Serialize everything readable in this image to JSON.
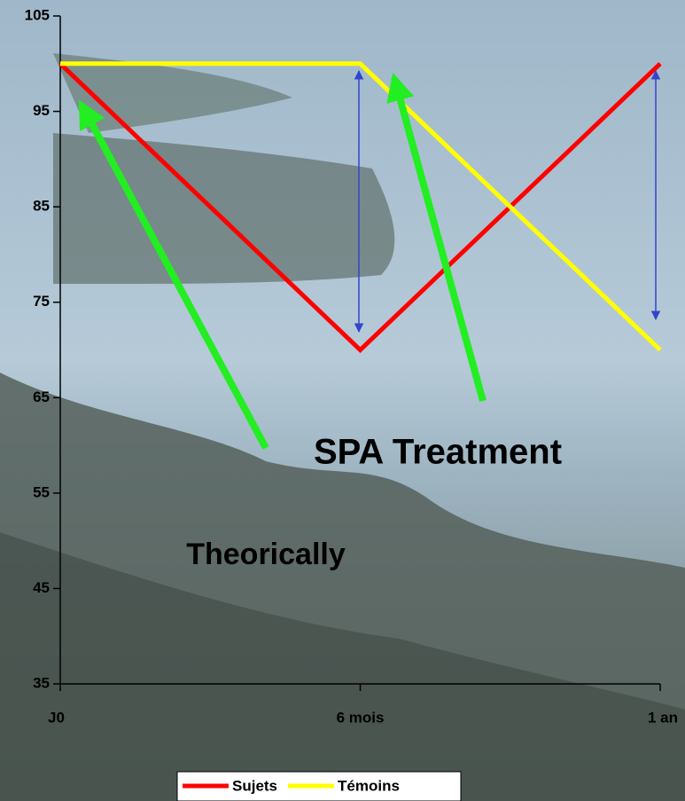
{
  "chart_data": {
    "type": "line",
    "categories": [
      "J0",
      "6 mois",
      "1 an"
    ],
    "series": [
      {
        "name": "Sujets",
        "color": "#ff0000",
        "values": [
          100,
          70,
          100
        ]
      },
      {
        "name": "Témoins",
        "color": "#ffff00",
        "values": [
          100,
          100,
          70
        ]
      }
    ],
    "ylim": [
      35,
      105
    ],
    "yticks": [
      35,
      45,
      55,
      65,
      75,
      85,
      95,
      105
    ],
    "legend": "bottom",
    "annotations": [
      "SPA Treatment",
      "Theorically"
    ]
  }
}
